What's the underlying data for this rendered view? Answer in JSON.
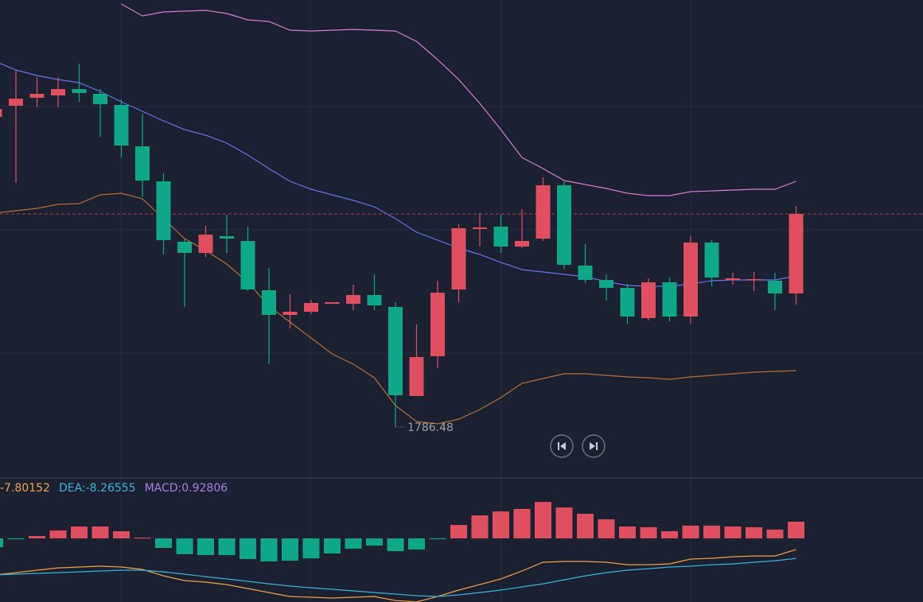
{
  "chart_data": [
    {
      "type": "candlestick",
      "open": [
        1825.48,
        1826.88,
        1827.88,
        1828.18,
        1828.98,
        1828.38,
        1826.98,
        1821.78,
        1817.38,
        1809.78,
        1808.38,
        1810.48,
        1809.88,
        1803.68,
        1800.58,
        1800.98,
        1801.98,
        1801.98,
        1803.08,
        1801.58,
        1790.38,
        1795.38,
        1803.78,
        1811.38,
        1811.68,
        1809.18,
        1810.18,
        1816.88,
        1806.78,
        1804.98,
        1803.98,
        1800.18,
        1804.68,
        1800.38,
        1809.68,
        1804.98,
        1804.98,
        1804.88,
        1803.28
      ],
      "high": [
        1827.18,
        1831.38,
        1830.48,
        1830.48,
        1832.18,
        1828.98,
        1827.68,
        1825.88,
        1818.38,
        1810.18,
        1811.78,
        1813.18,
        1811.68,
        1806.48,
        1803.18,
        1802.48,
        1802.18,
        1804.38,
        1805.68,
        1802.18,
        1799.38,
        1804.88,
        1811.98,
        1813.38,
        1813.18,
        1813.88,
        1817.88,
        1817.48,
        1809.48,
        1805.68,
        1804.48,
        1805.18,
        1805.28,
        1810.48,
        1809.98,
        1805.88,
        1805.98,
        1805.88,
        1814.28
      ],
      "low": [
        1825.18,
        1817.18,
        1826.68,
        1826.68,
        1827.38,
        1822.98,
        1820.38,
        1815.38,
        1808.18,
        1801.58,
        1807.88,
        1808.38,
        1803.58,
        1794.38,
        1798.88,
        1800.68,
        1801.98,
        1801.18,
        1801.18,
        1786.48,
        1790.38,
        1793.88,
        1802.18,
        1809.18,
        1808.38,
        1808.98,
        1809.88,
        1806.38,
        1804.58,
        1802.38,
        1799.48,
        1799.88,
        1799.78,
        1799.48,
        1804.18,
        1804.38,
        1803.58,
        1801.18,
        1801.88
      ],
      "close": [
        1826.48,
        1827.78,
        1828.38,
        1828.98,
        1828.48,
        1827.08,
        1821.88,
        1817.48,
        1809.98,
        1808.38,
        1810.68,
        1810.18,
        1803.78,
        1800.58,
        1800.98,
        1802.08,
        1802.18,
        1803.08,
        1801.78,
        1790.48,
        1795.28,
        1803.38,
        1811.48,
        1811.58,
        1809.18,
        1809.88,
        1816.88,
        1806.88,
        1804.98,
        1803.98,
        1800.38,
        1804.68,
        1800.38,
        1809.68,
        1805.28,
        1805.18,
        1805.08,
        1803.28,
        1813.28
      ],
      "up_color": "#e04f5f",
      "down_color": "#0ea888",
      "ylim": [
        1780.18,
        1840.18
      ],
      "bands": [
        {
          "color": "#d27ed0",
          "values": [
            null,
            null,
            null,
            null,
            null,
            null,
            1839.68,
            1838.18,
            1838.68,
            1838.78,
            1838.88,
            1838.48,
            1837.68,
            1837.48,
            1836.38,
            1836.28,
            1836.38,
            1836.48,
            1836.38,
            1836.28,
            1834.98,
            1832.68,
            1830.18,
            1827.18,
            1823.88,
            1820.38,
            1818.98,
            1817.48,
            1816.98,
            1816.48,
            1815.88,
            1815.58,
            1815.58,
            1816.08,
            1816.18,
            1816.28,
            1816.38,
            1816.38,
            1817.38
          ]
        },
        {
          "color": "#6771e6",
          "values": [
            1832.48,
            1831.38,
            1830.68,
            1830.18,
            1829.78,
            1828.68,
            1827.38,
            1826.18,
            1824.98,
            1823.88,
            1823.18,
            1822.18,
            1820.68,
            1818.98,
            1817.38,
            1816.38,
            1815.68,
            1814.98,
            1814.18,
            1812.68,
            1810.98,
            1809.98,
            1808.98,
            1808.18,
            1807.18,
            1806.28,
            1805.98,
            1805.68,
            1805.38,
            1804.78,
            1804.28,
            1804.18,
            1804.18,
            1804.48,
            1804.88,
            1804.98,
            1804.98,
            1804.98,
            1805.48
          ]
        },
        {
          "color": "#b46d3a",
          "values": [
            1813.38,
            1813.68,
            1813.98,
            1814.48,
            1814.58,
            1815.68,
            1815.88,
            1815.18,
            1812.68,
            1810.18,
            1808.68,
            1806.98,
            1804.68,
            1801.68,
            1799.68,
            1797.68,
            1795.68,
            1794.38,
            1792.68,
            1789.18,
            1787.18,
            1786.88,
            1787.48,
            1788.68,
            1790.18,
            1791.98,
            1792.58,
            1793.18,
            1793.18,
            1792.98,
            1792.78,
            1792.68,
            1792.48,
            1792.78,
            1792.98,
            1793.18,
            1793.38,
            1793.48,
            1793.58
          ]
        }
      ],
      "last_price_color": "#a8404c"
    },
    {
      "type": "macd",
      "histogram": {
        "name": "MACD:0.92806",
        "color": "#a77fe0",
        "up_color": "#e04f5f",
        "down_color": "#0ea888",
        "values": [
          -0.49,
          -0.04,
          0.13,
          0.44,
          0.66,
          0.66,
          0.4,
          0.04,
          -0.53,
          -0.88,
          -0.93,
          -0.93,
          -1.15,
          -1.28,
          -1.24,
          -1.11,
          -0.84,
          -0.57,
          -0.4,
          -0.71,
          -0.62,
          -0.04,
          0.75,
          1.28,
          1.5,
          1.64,
          2.03,
          1.72,
          1.37,
          1.06,
          0.66,
          0.62,
          0.4,
          0.71,
          0.71,
          0.66,
          0.62,
          0.49,
          0.92806
        ]
      },
      "ylim": [
        -3.54,
        3.32
      ],
      "y2lim": [
        -10.57,
        -4.06
      ],
      "series": [
        {
          "name": "-7.80152",
          "color": "#f0a04b",
          "axis": "y2",
          "values": [
            -9.14,
            -9.02,
            -8.89,
            -8.77,
            -8.72,
            -8.68,
            -8.72,
            -8.85,
            -9.19,
            -9.44,
            -9.52,
            -9.65,
            -9.86,
            -10.07,
            -10.28,
            -10.32,
            -10.36,
            -10.32,
            -10.28,
            -10.49,
            -10.57,
            -10.28,
            -9.94,
            -9.65,
            -9.35,
            -8.93,
            -8.47,
            -8.43,
            -8.43,
            -8.47,
            -8.6,
            -8.6,
            -8.56,
            -8.3,
            -8.26,
            -8.18,
            -8.14,
            -8.14,
            -7.80152
          ]
        },
        {
          "name": "DEA:-8.26555",
          "color": "#3ab4d6",
          "axis": "y2",
          "values": [
            -9.14,
            -9.1,
            -9.06,
            -9.02,
            -8.98,
            -8.93,
            -8.89,
            -8.89,
            -8.98,
            -9.1,
            -9.23,
            -9.35,
            -9.48,
            -9.61,
            -9.73,
            -9.82,
            -9.9,
            -9.98,
            -10.07,
            -10.15,
            -10.24,
            -10.28,
            -10.19,
            -10.07,
            -9.94,
            -9.77,
            -9.61,
            -9.4,
            -9.19,
            -9.02,
            -8.89,
            -8.81,
            -8.72,
            -8.68,
            -8.6,
            -8.56,
            -8.47,
            -8.39,
            -8.26555
          ]
        }
      ]
    }
  ]
}
